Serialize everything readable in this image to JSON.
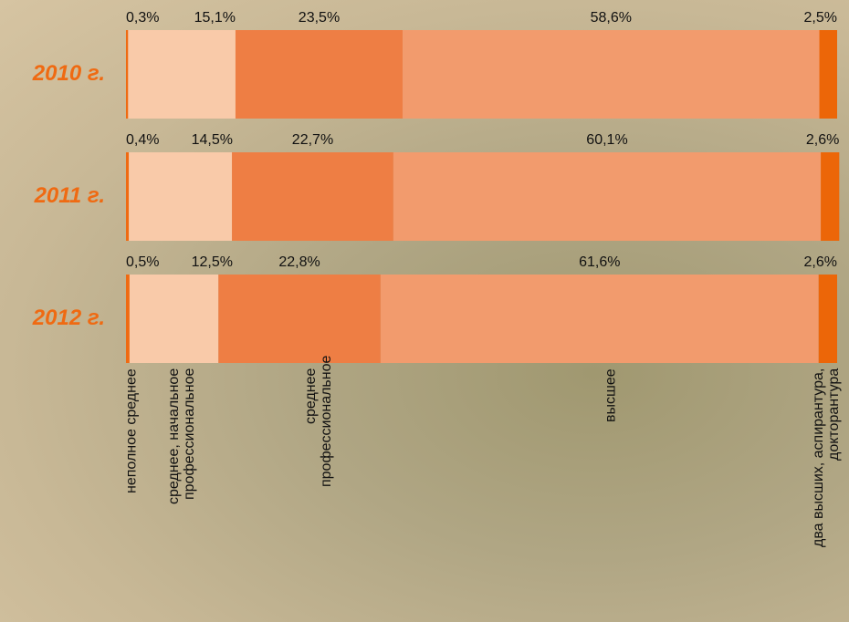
{
  "chart_data": {
    "type": "stacked_bar_horizontal",
    "categories": [
      "2010 г.",
      "2011 г.",
      "2012 г."
    ],
    "xlim": [
      0,
      100
    ],
    "series": [
      {
        "name": "неполное среднее",
        "color": "#ef6a12",
        "values": [
          0.3,
          0.4,
          0.5
        ],
        "value_labels": [
          "0,3%",
          "0,4%",
          "0,5%"
        ]
      },
      {
        "name": "среднее, начальное профессиональное",
        "color": "#f9caa9",
        "values": [
          15.1,
          14.5,
          12.5
        ],
        "value_labels": [
          "15,1%",
          "14,5%",
          "12,5%"
        ]
      },
      {
        "name": "среднее профессиональное",
        "color": "#ee7e44",
        "values": [
          23.5,
          22.7,
          22.8
        ],
        "value_labels": [
          "23,5%",
          "22,7%",
          "22,8%"
        ]
      },
      {
        "name": "высшее",
        "color": "#f29b6d",
        "values": [
          58.6,
          60.1,
          61.6
        ],
        "value_labels": [
          "58,6%",
          "60,1%",
          "61,6%"
        ]
      },
      {
        "name": "два высших, аспирантура, докторантура",
        "color": "#ec6608",
        "values": [
          2.5,
          2.6,
          2.6
        ],
        "value_labels": [
          "2,5%",
          "2,6%",
          "2,6%"
        ]
      }
    ]
  }
}
